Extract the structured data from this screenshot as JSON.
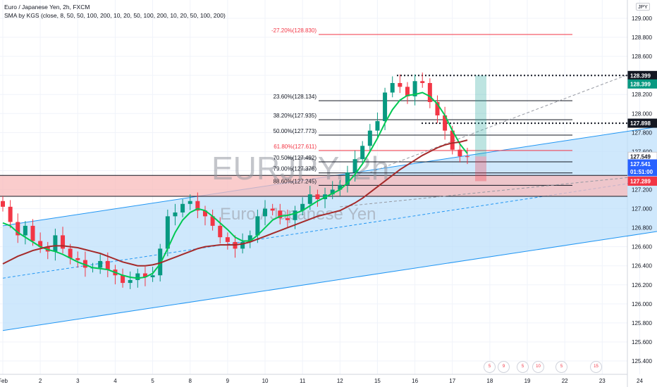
{
  "header": {
    "title": "Euro / Japanese Yen, 2h, FXCM",
    "indicator": "SMA by KGS (close, 8, 50, 50, 100, 200, 10, 20, 50, 100, 200, 10, 20, 50, 100, 200)",
    "currency": "JPY"
  },
  "watermark": {
    "symbol": "EURJPY, 2h",
    "name": "Euro / Japanese Yen"
  },
  "colors": {
    "up": "#089981",
    "down": "#f23645",
    "sma_fast": "#00c853",
    "sma_slow": "#a52a2a",
    "channel_fill": "#bbdefb",
    "channel_line": "#2196f3",
    "zone_fill": "#f8bbbb",
    "price_tag": "#2962ff",
    "fib_red": "#f23645"
  },
  "chart_data": {
    "type": "candlestick",
    "symbol": "EURJPY",
    "interval": "2h",
    "y_ticks": [
      125.4,
      125.6,
      125.8,
      126.0,
      126.2,
      126.4,
      126.6,
      126.8,
      127.0,
      127.2,
      127.4,
      127.6,
      127.8,
      128.0,
      128.2,
      128.4,
      128.6,
      128.8,
      129.0
    ],
    "ylim": [
      125.3,
      129.1
    ],
    "x_ticks": [
      {
        "label": "Feb",
        "i": 0
      },
      {
        "label": "2",
        "i": 5
      },
      {
        "label": "3",
        "i": 10
      },
      {
        "label": "4",
        "i": 15
      },
      {
        "label": "5",
        "i": 20
      },
      {
        "label": "8",
        "i": 25
      },
      {
        "label": "9",
        "i": 30
      },
      {
        "label": "10",
        "i": 35
      },
      {
        "label": "11",
        "i": 40
      },
      {
        "label": "12",
        "i": 45
      },
      {
        "label": "15",
        "i": 50
      },
      {
        "label": "16",
        "i": 55
      },
      {
        "label": "17",
        "i": 60
      },
      {
        "label": "18",
        "i": 65
      },
      {
        "label": "19",
        "i": 70
      },
      {
        "label": "22",
        "i": 75
      },
      {
        "label": "23",
        "i": 80
      },
      {
        "label": "24",
        "i": 85
      }
    ],
    "close": [
      127.02,
      126.86,
      126.72,
      126.82,
      126.66,
      126.6,
      126.55,
      126.72,
      126.58,
      126.48,
      126.46,
      126.38,
      126.38,
      126.45,
      126.36,
      126.3,
      126.22,
      126.25,
      126.32,
      126.28,
      126.3,
      126.58,
      126.92,
      126.96,
      127.05,
      127.08,
      126.98,
      126.92,
      126.82,
      126.7,
      126.65,
      126.58,
      126.65,
      126.72,
      126.92,
      127.0,
      126.98,
      126.9,
      126.88,
      126.98,
      127.05,
      127.15,
      127.1,
      127.15,
      127.2,
      127.25,
      127.38,
      127.52,
      127.66,
      127.82,
      127.92,
      128.22,
      128.32,
      128.28,
      128.18,
      128.34,
      128.32,
      128.12,
      127.98,
      127.82,
      127.62,
      127.55,
      127.549
    ],
    "sma_fast": [
      126.85,
      126.82,
      126.75,
      126.7,
      126.65,
      126.6,
      126.57,
      126.55,
      126.52,
      126.48,
      126.44,
      126.41,
      126.38,
      126.37,
      126.36,
      126.33,
      126.3,
      126.28,
      126.27,
      126.28,
      126.32,
      126.42,
      126.58,
      126.75,
      126.88,
      126.96,
      127.0,
      126.98,
      126.92,
      126.85,
      126.78,
      126.7,
      126.66,
      126.66,
      126.72,
      126.8,
      126.88,
      126.92,
      126.93,
      126.95,
      126.98,
      127.03,
      127.08,
      127.12,
      127.16,
      127.2,
      127.27,
      127.36,
      127.47,
      127.6,
      127.74,
      127.9,
      128.04,
      128.14,
      128.19,
      128.2,
      128.22,
      128.18,
      128.1,
      127.98,
      127.82,
      127.68,
      127.58
    ],
    "sma_slow": [
      126.42,
      126.46,
      126.5,
      126.53,
      126.56,
      126.58,
      126.6,
      126.61,
      126.61,
      126.6,
      126.59,
      126.57,
      126.55,
      126.53,
      126.5,
      126.47,
      126.44,
      126.42,
      126.4,
      126.4,
      126.41,
      126.43,
      126.46,
      126.49,
      126.52,
      126.55,
      126.58,
      126.6,
      126.61,
      126.62,
      126.62,
      126.62,
      126.63,
      126.65,
      126.68,
      126.71,
      126.74,
      126.77,
      126.8,
      126.83,
      126.86,
      126.89,
      126.92,
      126.94,
      126.96,
      126.98,
      127.02,
      127.06,
      127.11,
      127.17,
      127.23,
      127.29,
      127.35,
      127.41,
      127.46,
      127.51,
      127.56,
      127.6,
      127.64,
      127.67,
      127.69,
      127.7,
      127.72
    ],
    "fib_levels": [
      {
        "label": "-27.20%(128.830)",
        "value": 128.83,
        "color": "red"
      },
      {
        "label": "23.60%(128.134)",
        "value": 128.134,
        "color": "black"
      },
      {
        "label": "38.20%(127.935)",
        "value": 127.935,
        "color": "black"
      },
      {
        "label": "50.00%(127.773)",
        "value": 127.773,
        "color": "black"
      },
      {
        "label": "61.80%(127.611)",
        "value": 127.611,
        "color": "red"
      },
      {
        "label": "70.50%(127.492)",
        "value": 127.492,
        "color": "black"
      },
      {
        "label": "79.00%(127.376)",
        "value": 127.376,
        "color": "black"
      },
      {
        "label": "88.60%(127.245)",
        "value": 127.245,
        "color": "black"
      }
    ],
    "dotted_levels": [
      128.399,
      127.898
    ],
    "zone": {
      "top": 127.35,
      "bottom": 127.13
    },
    "channel": {
      "upper": [
        {
          "i": 0,
          "p": 126.82
        },
        {
          "i": 89,
          "p": 127.88
        }
      ],
      "lower": [
        {
          "i": 0,
          "p": 125.72
        },
        {
          "i": 89,
          "p": 126.78
        }
      ],
      "mid": [
        {
          "i": 0,
          "p": 126.27
        },
        {
          "i": 89,
          "p": 127.33
        }
      ]
    },
    "price_tags": [
      {
        "label": "128.399",
        "value": 128.399,
        "bg": "#131722"
      },
      {
        "label": "128.399",
        "value": 128.31,
        "bg": "#089981"
      },
      {
        "label": "127.898",
        "value": 127.898,
        "bg": "#131722"
      },
      {
        "label": "127.549",
        "value": 127.549,
        "bg": "#ffffff"
      },
      {
        "label": "127.541",
        "value": 127.47,
        "bg": "#2962ff"
      },
      {
        "label": "01:51:00",
        "value": 127.39,
        "bg": "#2962ff"
      },
      {
        "label": "127.289",
        "value": 127.289,
        "bg": "#f23645"
      }
    ]
  },
  "events": [
    "5",
    "9",
    "5",
    "10",
    "5",
    "15"
  ]
}
